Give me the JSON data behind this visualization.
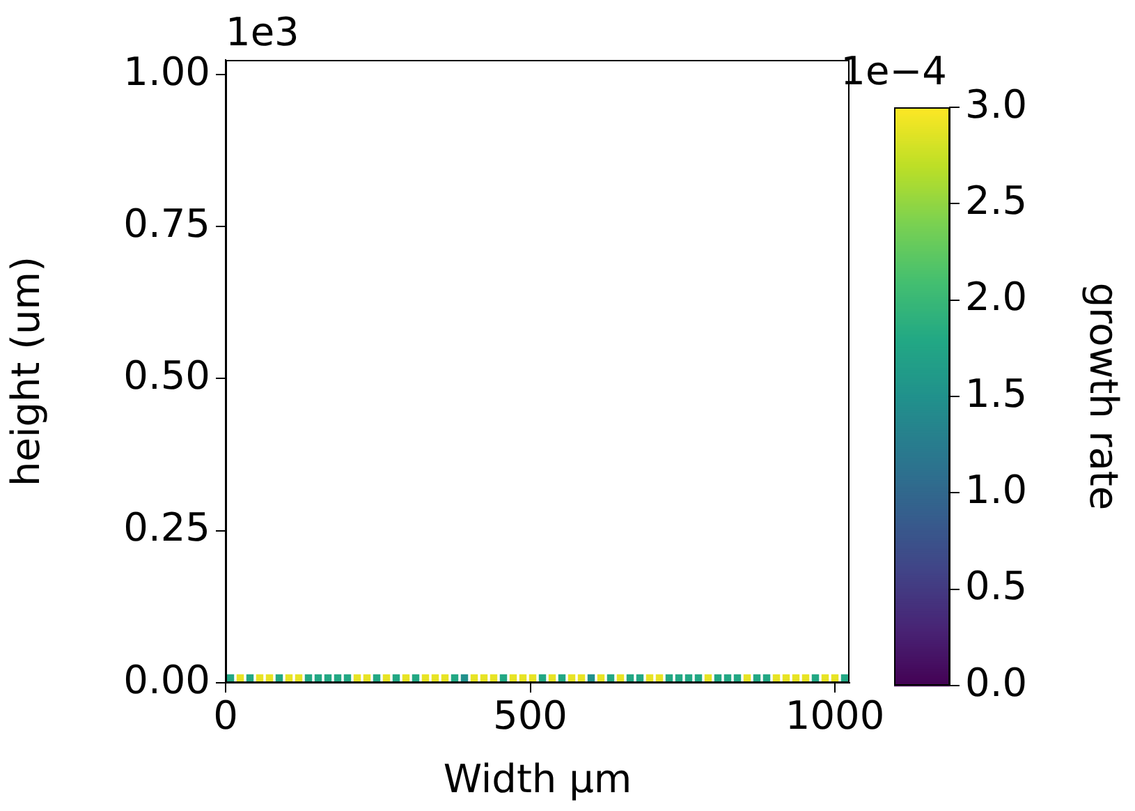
{
  "chart_data": {
    "type": "scatter",
    "marker": "square",
    "xlabel": "Width μm",
    "ylabel": "height (um)",
    "clabel": "growth rate",
    "annotations": [
      "1e3",
      "1e−4"
    ],
    "xlim": [
      0,
      1024
    ],
    "ylim": [
      0,
      1.024
    ],
    "xticks": [
      0,
      500,
      1000
    ],
    "yticks": [
      {
        "value": 0,
        "label": "0.00"
      },
      0.25,
      {
        "value": 0.5,
        "label": "0.50"
      },
      0.75,
      {
        "value": 1,
        "label": "1.00"
      }
    ],
    "clim": [
      0,
      3
    ],
    "cticks": [
      {
        "value": 0,
        "label": "0.0"
      },
      0.5,
      {
        "value": 1,
        "label": "1.0"
      },
      1.5,
      {
        "value": 2,
        "label": "2.0"
      },
      2.5,
      {
        "value": 3,
        "label": "3.0"
      }
    ],
    "x": [
      8,
      24,
      40,
      56,
      72,
      88,
      104,
      120,
      136,
      152,
      168,
      184,
      200,
      216,
      232,
      248,
      264,
      280,
      296,
      312,
      328,
      344,
      360,
      376,
      392,
      408,
      424,
      440,
      456,
      472,
      488,
      504,
      520,
      536,
      552,
      568,
      584,
      600,
      616,
      632,
      648,
      664,
      680,
      696,
      712,
      728,
      744,
      760,
      776,
      792,
      808,
      824,
      840,
      856,
      872,
      888,
      904,
      920,
      936,
      952,
      968,
      984,
      1000,
      1016
    ],
    "values": [
      0.008,
      0.008,
      0.008,
      0.008,
      0.008,
      0.008,
      0.008,
      0.008,
      0.008,
      0.008,
      0.008,
      0.008,
      0.008,
      0.008,
      0.008,
      0.008,
      0.008,
      0.008,
      0.008,
      0.008,
      0.008,
      0.008,
      0.008,
      0.008,
      0.008,
      0.008,
      0.008,
      0.008,
      0.008,
      0.008,
      0.008,
      0.008,
      0.008,
      0.008,
      0.008,
      0.008,
      0.008,
      0.008,
      0.008,
      0.008,
      0.008,
      0.008,
      0.008,
      0.008,
      0.008,
      0.008,
      0.008,
      0.008,
      0.008,
      0.008,
      0.008,
      0.008,
      0.008,
      0.008,
      0.008,
      0.008,
      0.008,
      0.008,
      0.008,
      0.008,
      0.008,
      0.008,
      0.008,
      0.008
    ],
    "cvalues": [
      1.8,
      2.9,
      1.8,
      2.9,
      2.9,
      1.8,
      2.9,
      2.9,
      1.8,
      1.8,
      1.8,
      1.8,
      1.8,
      2.9,
      2.9,
      1.8,
      2.9,
      1.8,
      2.9,
      1.8,
      2.9,
      2.9,
      2.9,
      1.8,
      1.5,
      2.9,
      2.9,
      2.9,
      1.8,
      2.9,
      2.9,
      2.9,
      1.8,
      2.9,
      1.8,
      2.9,
      2.9,
      1.5,
      2.9,
      1.8,
      2.9,
      1.8,
      1.8,
      2.9,
      2.9,
      1.8,
      1.8,
      1.8,
      1.8,
      2.9,
      1.8,
      1.8,
      1.8,
      2.9,
      1.8,
      1.8,
      2.9,
      2.9,
      2.9,
      2.9,
      1.8,
      2.9,
      2.9,
      1.8
    ]
  }
}
